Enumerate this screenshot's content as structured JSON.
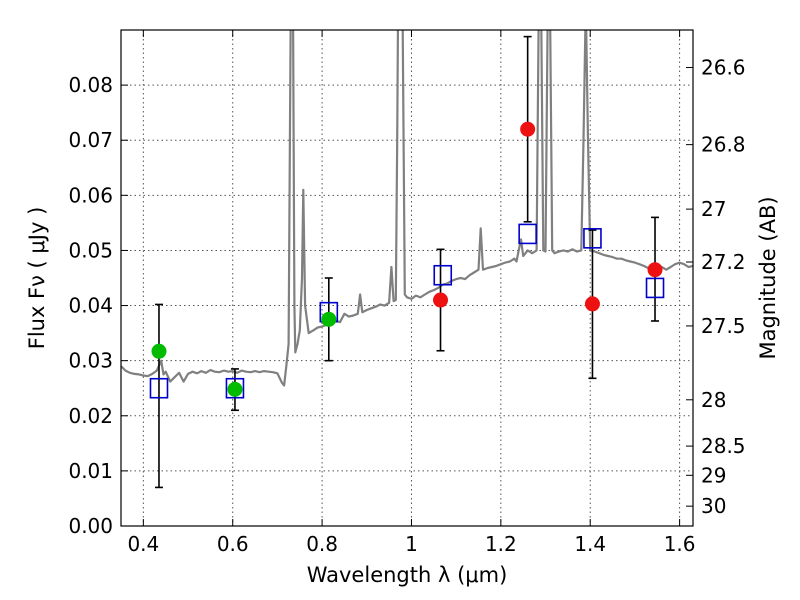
{
  "chart_data": {
    "type": "scatter",
    "xlabel": "Wavelength  λ (μm)",
    "ylabel": "Flux  Fν  ( μJy )",
    "ylabel_right": "Magnitude (AB)",
    "xlim": [
      0.35,
      1.63
    ],
    "ylim": [
      0.0,
      0.09
    ],
    "grid": true,
    "x_ticks": [
      0.4,
      0.6,
      0.8,
      1.0,
      1.2,
      1.4,
      1.6
    ],
    "x_tick_labels": [
      "0.4",
      "0.6",
      "0.8",
      "1",
      "1.2",
      "1.4",
      "1.6"
    ],
    "y_ticks": [
      0.0,
      0.01,
      0.02,
      0.03,
      0.04,
      0.05,
      0.06,
      0.07,
      0.08
    ],
    "y_tick_labels": [
      "0.00",
      "0.01",
      "0.02",
      "0.03",
      "0.04",
      "0.05",
      "0.06",
      "0.07",
      "0.08"
    ],
    "right_ticks": [
      {
        "label": "26.6",
        "flux": 0.0832
      },
      {
        "label": "26.8",
        "flux": 0.0692
      },
      {
        "label": "27",
        "flux": 0.0575
      },
      {
        "label": "27.2",
        "flux": 0.0479
      },
      {
        "label": "27.5",
        "flux": 0.0363
      },
      {
        "label": "28",
        "flux": 0.0229
      },
      {
        "label": "28.5",
        "flux": 0.0145
      },
      {
        "label": "29",
        "flux": 0.0092
      },
      {
        "label": "30",
        "flux": 0.0036
      }
    ],
    "colors": {
      "spectrum": "#808080",
      "model": "#0000cc",
      "green": "#00bb00",
      "red": "#ee1111",
      "grid": "#555555"
    },
    "spectrum": [
      [
        0.35,
        0.029
      ],
      [
        0.36,
        0.0282
      ],
      [
        0.37,
        0.0278
      ],
      [
        0.38,
        0.0276
      ],
      [
        0.39,
        0.0275
      ],
      [
        0.4,
        0.0273
      ],
      [
        0.41,
        0.0272
      ],
      [
        0.42,
        0.0276
      ],
      [
        0.43,
        0.0282
      ],
      [
        0.44,
        0.03
      ],
      [
        0.445,
        0.0275
      ],
      [
        0.45,
        0.028
      ],
      [
        0.46,
        0.0262
      ],
      [
        0.47,
        0.027
      ],
      [
        0.48,
        0.0278
      ],
      [
        0.49,
        0.0262
      ],
      [
        0.5,
        0.0276
      ],
      [
        0.51,
        0.028
      ],
      [
        0.52,
        0.0277
      ],
      [
        0.53,
        0.0281
      ],
      [
        0.54,
        0.0278
      ],
      [
        0.55,
        0.0283
      ],
      [
        0.56,
        0.028
      ],
      [
        0.57,
        0.0279
      ],
      [
        0.58,
        0.0282
      ],
      [
        0.59,
        0.028
      ],
      [
        0.6,
        0.0281
      ],
      [
        0.61,
        0.0278
      ],
      [
        0.62,
        0.0282
      ],
      [
        0.63,
        0.028
      ],
      [
        0.64,
        0.0279
      ],
      [
        0.65,
        0.0281
      ],
      [
        0.66,
        0.0279
      ],
      [
        0.67,
        0.0281
      ],
      [
        0.68,
        0.028
      ],
      [
        0.69,
        0.0279
      ],
      [
        0.7,
        0.0277
      ],
      [
        0.71,
        0.026
      ],
      [
        0.715,
        0.0255
      ],
      [
        0.72,
        0.029
      ],
      [
        0.725,
        0.033
      ],
      [
        0.728,
        0.07
      ],
      [
        0.73,
        0.095
      ],
      [
        0.735,
        0.095
      ],
      [
        0.738,
        0.04
      ],
      [
        0.74,
        0.0315
      ],
      [
        0.745,
        0.033
      ],
      [
        0.75,
        0.0355
      ],
      [
        0.755,
        0.045
      ],
      [
        0.758,
        0.061
      ],
      [
        0.762,
        0.04
      ],
      [
        0.77,
        0.035
      ],
      [
        0.78,
        0.0355
      ],
      [
        0.79,
        0.036
      ],
      [
        0.8,
        0.0362
      ],
      [
        0.81,
        0.0365
      ],
      [
        0.82,
        0.037
      ],
      [
        0.83,
        0.0372
      ],
      [
        0.84,
        0.037
      ],
      [
        0.85,
        0.0385
      ],
      [
        0.86,
        0.038
      ],
      [
        0.87,
        0.0382
      ],
      [
        0.88,
        0.0385
      ],
      [
        0.885,
        0.042
      ],
      [
        0.89,
        0.0388
      ],
      [
        0.9,
        0.0392
      ],
      [
        0.91,
        0.0395
      ],
      [
        0.92,
        0.0398
      ],
      [
        0.93,
        0.0402
      ],
      [
        0.94,
        0.04
      ],
      [
        0.95,
        0.0405
      ],
      [
        0.955,
        0.047
      ],
      [
        0.96,
        0.0408
      ],
      [
        0.965,
        0.041
      ],
      [
        0.968,
        0.07
      ],
      [
        0.97,
        0.095
      ],
      [
        0.98,
        0.095
      ],
      [
        0.985,
        0.042
      ],
      [
        0.99,
        0.0415
      ],
      [
        1.0,
        0.0412
      ],
      [
        1.01,
        0.0418
      ],
      [
        1.02,
        0.0415
      ],
      [
        1.03,
        0.042
      ],
      [
        1.04,
        0.0425
      ],
      [
        1.05,
        0.0428
      ],
      [
        1.06,
        0.0432
      ],
      [
        1.07,
        0.0438
      ],
      [
        1.08,
        0.044
      ],
      [
        1.09,
        0.0445
      ],
      [
        1.1,
        0.0448
      ],
      [
        1.11,
        0.045
      ],
      [
        1.12,
        0.0448
      ],
      [
        1.13,
        0.0455
      ],
      [
        1.14,
        0.046
      ],
      [
        1.15,
        0.0465
      ],
      [
        1.155,
        0.054
      ],
      [
        1.16,
        0.0465
      ],
      [
        1.17,
        0.0468
      ],
      [
        1.18,
        0.047
      ],
      [
        1.19,
        0.0472
      ],
      [
        1.2,
        0.0475
      ],
      [
        1.21,
        0.0478
      ],
      [
        1.22,
        0.048
      ],
      [
        1.23,
        0.0485
      ],
      [
        1.235,
        0.048
      ],
      [
        1.24,
        0.05
      ],
      [
        1.245,
        0.052
      ],
      [
        1.25,
        0.049
      ],
      [
        1.26,
        0.05
      ],
      [
        1.27,
        0.0495
      ],
      [
        1.28,
        0.05
      ],
      [
        1.285,
        0.095
      ],
      [
        1.29,
        0.095
      ],
      [
        1.295,
        0.05
      ],
      [
        1.3,
        0.0498
      ],
      [
        1.305,
        0.095
      ],
      [
        1.31,
        0.095
      ],
      [
        1.315,
        0.05
      ],
      [
        1.32,
        0.0495
      ],
      [
        1.33,
        0.0498
      ],
      [
        1.34,
        0.05
      ],
      [
        1.35,
        0.0498
      ],
      [
        1.36,
        0.0502
      ],
      [
        1.37,
        0.0498
      ],
      [
        1.38,
        0.05
      ],
      [
        1.385,
        0.07
      ],
      [
        1.39,
        0.095
      ],
      [
        1.395,
        0.07
      ],
      [
        1.4,
        0.05
      ],
      [
        1.41,
        0.0498
      ],
      [
        1.42,
        0.0495
      ],
      [
        1.43,
        0.0492
      ],
      [
        1.44,
        0.049
      ],
      [
        1.45,
        0.0488
      ],
      [
        1.46,
        0.0485
      ],
      [
        1.47,
        0.0485
      ],
      [
        1.48,
        0.0482
      ],
      [
        1.49,
        0.048
      ],
      [
        1.5,
        0.0478
      ],
      [
        1.51,
        0.0475
      ],
      [
        1.52,
        0.0472
      ],
      [
        1.53,
        0.0468
      ],
      [
        1.54,
        0.0465
      ],
      [
        1.55,
        0.0468
      ],
      [
        1.56,
        0.047
      ],
      [
        1.57,
        0.0465
      ],
      [
        1.58,
        0.047
      ],
      [
        1.59,
        0.0475
      ],
      [
        1.6,
        0.0478
      ],
      [
        1.61,
        0.0475
      ],
      [
        1.62,
        0.047
      ],
      [
        1.63,
        0.0472
      ]
    ],
    "model_points": [
      {
        "x": 0.435,
        "y": 0.025
      },
      {
        "x": 0.605,
        "y": 0.025
      },
      {
        "x": 0.815,
        "y": 0.0388
      },
      {
        "x": 1.07,
        "y": 0.0455
      },
      {
        "x": 1.26,
        "y": 0.053
      },
      {
        "x": 1.405,
        "y": 0.0522
      },
      {
        "x": 1.545,
        "y": 0.0432
      }
    ],
    "observed": [
      {
        "x": 0.435,
        "y": 0.0317,
        "yerr_lo": 0.007,
        "yerr_hi": 0.0402,
        "color": "green"
      },
      {
        "x": 0.605,
        "y": 0.0248,
        "yerr_lo": 0.021,
        "yerr_hi": 0.0285,
        "color": "green"
      },
      {
        "x": 0.815,
        "y": 0.0375,
        "yerr_lo": 0.03,
        "yerr_hi": 0.045,
        "color": "green"
      },
      {
        "x": 1.065,
        "y": 0.041,
        "yerr_lo": 0.0318,
        "yerr_hi": 0.0502,
        "color": "red"
      },
      {
        "x": 1.26,
        "y": 0.072,
        "yerr_lo": 0.0552,
        "yerr_hi": 0.0888,
        "color": "red"
      },
      {
        "x": 1.405,
        "y": 0.0403,
        "yerr_lo": 0.0268,
        "yerr_hi": 0.0537,
        "color": "red"
      },
      {
        "x": 1.545,
        "y": 0.0465,
        "yerr_lo": 0.0372,
        "yerr_hi": 0.056,
        "color": "red"
      }
    ]
  }
}
